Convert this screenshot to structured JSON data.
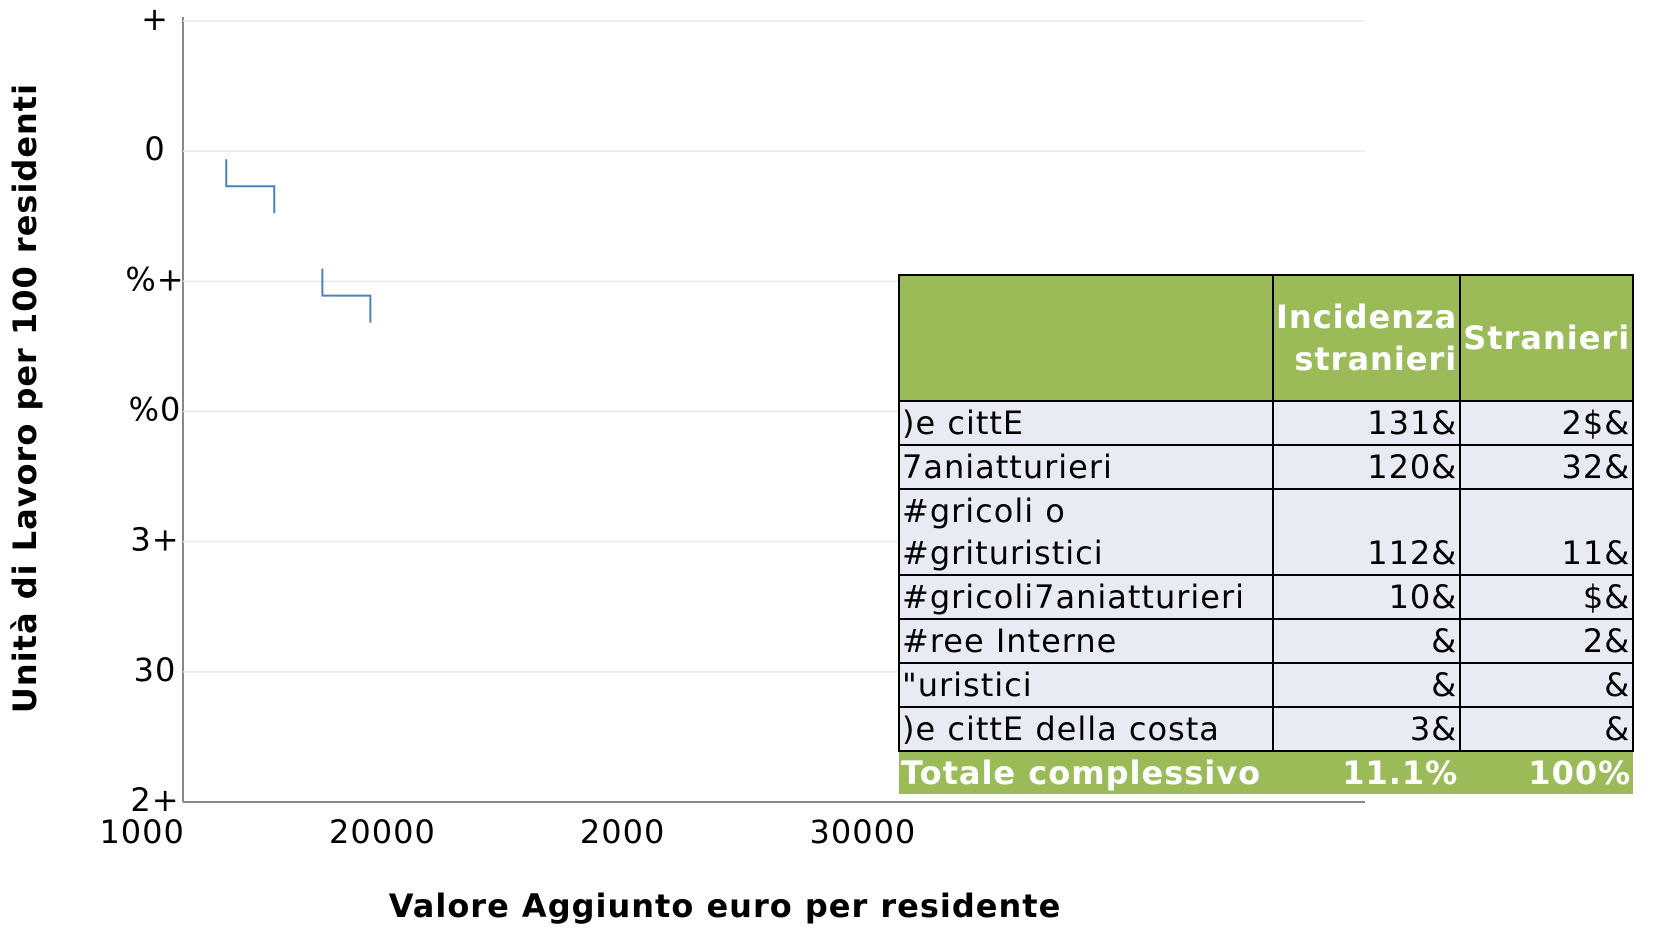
{
  "chart_data": {
    "type": "scatter",
    "x_label": "Valore Aggiunto euro per residente",
    "y_label": "Unità di Lavoro per 100 residenti",
    "x": [
      0.45,
      0.85
    ],
    "values": [
      4.73,
      3.89
    ],
    "color": "#4f81bd",
    "xlim": [
      0.17,
      5.09
    ],
    "ylim": [
      0,
      6
    ],
    "xticks": [
      {
        "value": 0,
        "label": "1000"
      },
      {
        "value": 1,
        "label": "20000"
      },
      {
        "value": 2,
        "label": "2000"
      },
      {
        "value": 3,
        "label": "30000"
      }
    ],
    "yticks": [
      {
        "value": 0,
        "label": "2+"
      },
      {
        "value": 1,
        "label": "30"
      },
      {
        "value": 2,
        "label": "3+"
      },
      {
        "value": 3,
        "label": "%0"
      },
      {
        "value": 4,
        "label": "%+"
      },
      {
        "value": 5,
        "label": "0"
      },
      {
        "value": 6,
        "label": "+"
      }
    ],
    "grid": true
  },
  "table": {
    "header": [
      "Incidenza stranieri",
      "Stranieri"
    ],
    "rows": [
      [
        ")e cittE",
        "131&",
        "2$&"
      ],
      [
        "7aniatturieri",
        "120&",
        "32&"
      ],
      [
        "#gricoli o #grituristici",
        "112&",
        "11&"
      ],
      [
        "#gricoli7aniatturieri",
        "10&",
        "$&"
      ],
      [
        "#ree Interne",
        "&",
        "2&"
      ],
      [
        "\"uristici",
        "&",
        "&"
      ],
      [
        ")e cittE della costa",
        "3&",
        "&"
      ]
    ],
    "total": [
      "Totale complessivo",
      "11.1%",
      "100%"
    ]
  }
}
